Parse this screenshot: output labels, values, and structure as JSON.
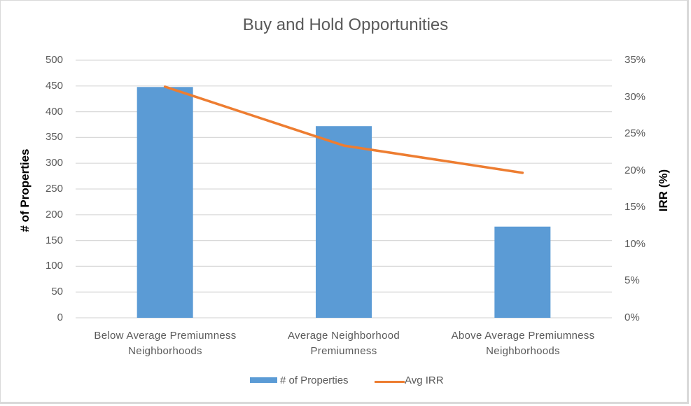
{
  "chart": {
    "title": "Buy and Hold Opportunities",
    "left_axis_title": "# of Properties",
    "right_axis_title": "IRR (%)",
    "left_ticks": [
      "0",
      "50",
      "100",
      "150",
      "200",
      "250",
      "300",
      "350",
      "400",
      "450",
      "500"
    ],
    "right_ticks": [
      "0%",
      "5%",
      "10%",
      "15%",
      "20%",
      "25%",
      "30%",
      "35%"
    ],
    "categories": [
      {
        "line1": "Below Average  Premiumness",
        "line2": "Neighborhoods"
      },
      {
        "line1": "Average  Neighborhood",
        "line2": "Premiumness"
      },
      {
        "line1": "Above Average  Premiumness",
        "line2": "Neighborhoods"
      }
    ],
    "legend": {
      "bar_label": "# of Properties",
      "line_label": "Avg IRR"
    },
    "colors": {
      "bar": "#5B9BD5",
      "line": "#ED7D31",
      "grid": "#D9D9D9",
      "text": "#595959"
    }
  },
  "chart_data": {
    "type": "bar",
    "title": "Buy and Hold Opportunities",
    "categories": [
      "Below Average Premiumness Neighborhoods",
      "Average Neighborhood Premiumness",
      "Above Average Premiumness Neighborhoods"
    ],
    "series": [
      {
        "name": "# of Properties",
        "type": "bar",
        "axis": "left",
        "values": [
          448,
          372,
          177
        ]
      },
      {
        "name": "Avg IRR",
        "type": "line",
        "axis": "right",
        "values": [
          0.314,
          0.234,
          0.197
        ]
      }
    ],
    "xlabel": "",
    "ylabel": "# of Properties",
    "y2label": "IRR (%)",
    "ylim": [
      0,
      500
    ],
    "y2lim": [
      0,
      0.35
    ],
    "grid": true,
    "legend_position": "bottom"
  }
}
